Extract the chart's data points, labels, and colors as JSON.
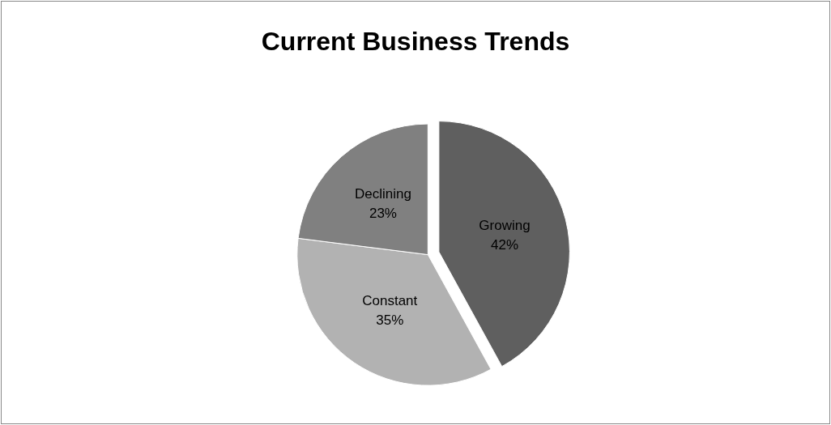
{
  "chart_data": {
    "type": "pie",
    "title": "Current Business Trends",
    "categories": [
      "Growing",
      "Constant",
      "Declining"
    ],
    "values": [
      42,
      35,
      23
    ],
    "colors": [
      "#5f5f5f",
      "#b2b2b2",
      "#808080"
    ],
    "value_labels": [
      "42%",
      "35%",
      "23%"
    ],
    "legend": false
  }
}
